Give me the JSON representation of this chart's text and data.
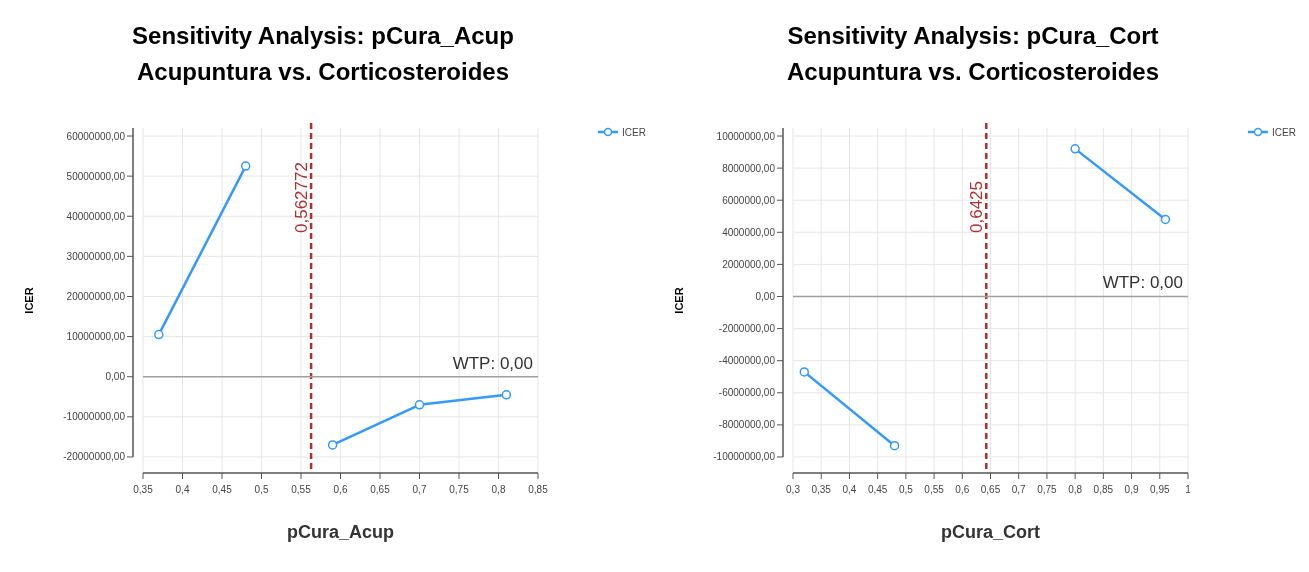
{
  "chart_data": [
    {
      "type": "line",
      "title": "Sensitivity Analysis: pCura_Acup",
      "subtitle": "Acupuntura vs. Corticosteroides",
      "xlabel": "pCura_Acup",
      "ylabel": "ICER",
      "series": [
        {
          "name": "ICER",
          "color": "#3399ff",
          "x": [
            0.37,
            0.48,
            0.562772,
            0.59,
            0.7,
            0.81
          ],
          "values": [
            10500000,
            52500000,
            null,
            -17000000,
            -7000000,
            -4500000
          ]
        }
      ],
      "xlim": [
        0.35,
        0.85
      ],
      "xticks": [
        {
          "value": 0.35,
          "label": "0,35"
        },
        {
          "value": 0.4,
          "label": "0,4"
        },
        {
          "value": 0.45,
          "label": "0,45"
        },
        {
          "value": 0.5,
          "label": "0,5"
        },
        {
          "value": 0.55,
          "label": "0,55"
        },
        {
          "value": 0.6,
          "label": "0,6"
        },
        {
          "value": 0.65,
          "label": "0,65"
        },
        {
          "value": 0.7,
          "label": "0,7"
        },
        {
          "value": 0.75,
          "label": "0,75"
        },
        {
          "value": 0.8,
          "label": "0,8"
        },
        {
          "value": 0.85,
          "label": "0,85"
        }
      ],
      "ylim": [
        -24000000,
        62000000
      ],
      "yticks": [
        {
          "value": -20000000,
          "label": "-20000000,00"
        },
        {
          "value": -10000000,
          "label": "-10000000,00"
        },
        {
          "value": 0,
          "label": "0,00"
        },
        {
          "value": 10000000,
          "label": "10000000,00"
        },
        {
          "value": 20000000,
          "label": "20000000,00"
        },
        {
          "value": 30000000,
          "label": "30000000,00"
        },
        {
          "value": 40000000,
          "label": "40000000,00"
        },
        {
          "value": 50000000,
          "label": "50000000,00"
        },
        {
          "value": 60000000,
          "label": "60000000,00"
        }
      ],
      "ref_lines": [
        {
          "axis": "x",
          "value": 0.562772,
          "label": "0,562772",
          "color": "#b03030",
          "line_style": "dashed"
        },
        {
          "axis": "y",
          "value": 0,
          "label": "WTP: 0,00",
          "color": "#a0a0a0",
          "line_style": "solid"
        }
      ],
      "grid": true,
      "legend": "top right",
      "marker": "circle",
      "line_style": "solid"
    },
    {
      "type": "line",
      "title": "Sensitivity Analysis:  pCura_Cort",
      "subtitle": "Acupuntura vs. Corticosteroides",
      "xlabel": "pCura_Cort",
      "ylabel": "ICER",
      "series": [
        {
          "name": "ICER",
          "color": "#3399ff",
          "x": [
            0.32,
            0.48,
            0.6425,
            0.8,
            0.96
          ],
          "values": [
            -4700000,
            -9300000,
            null,
            9200000,
            4800000
          ]
        }
      ],
      "xlim": [
        0.3,
        1
      ],
      "xticks": [
        {
          "value": 0.3,
          "label": "0,3"
        },
        {
          "value": 0.35,
          "label": "0,35"
        },
        {
          "value": 0.4,
          "label": "0,4"
        },
        {
          "value": 0.45,
          "label": "0,45"
        },
        {
          "value": 0.5,
          "label": "0,5"
        },
        {
          "value": 0.55,
          "label": "0,55"
        },
        {
          "value": 0.6,
          "label": "0,6"
        },
        {
          "value": 0.65,
          "label": "0,65"
        },
        {
          "value": 0.7,
          "label": "0,7"
        },
        {
          "value": 0.75,
          "label": "0,75"
        },
        {
          "value": 0.8,
          "label": "0,8"
        },
        {
          "value": 0.85,
          "label": "0,85"
        },
        {
          "value": 0.9,
          "label": "0,9"
        },
        {
          "value": 0.95,
          "label": "0,95"
        },
        {
          "value": 1,
          "label": "1"
        }
      ],
      "ylim": [
        -11000000,
        10500000
      ],
      "yticks": [
        {
          "value": -10000000,
          "label": "-10000000,00"
        },
        {
          "value": -8000000,
          "label": "-8000000,00"
        },
        {
          "value": -6000000,
          "label": "-6000000,00"
        },
        {
          "value": -4000000,
          "label": "-4000000,00"
        },
        {
          "value": -2000000,
          "label": "-2000000,00"
        },
        {
          "value": 0,
          "label": "0,00"
        },
        {
          "value": 2000000,
          "label": "2000000,00"
        },
        {
          "value": 4000000,
          "label": "4000000,00"
        },
        {
          "value": 6000000,
          "label": "6000000,00"
        },
        {
          "value": 8000000,
          "label": "8000000,00"
        },
        {
          "value": 10000000,
          "label": "10000000,00"
        }
      ],
      "ref_lines": [
        {
          "axis": "x",
          "value": 0.6425,
          "label": "0,6425",
          "color": "#b03030",
          "line_style": "dashed"
        },
        {
          "axis": "y",
          "value": 0,
          "label": "WTP: 0,00",
          "color": "#a0a0a0",
          "line_style": "solid"
        }
      ],
      "grid": true,
      "legend": "top right",
      "marker": "circle",
      "line_style": "solid"
    }
  ]
}
